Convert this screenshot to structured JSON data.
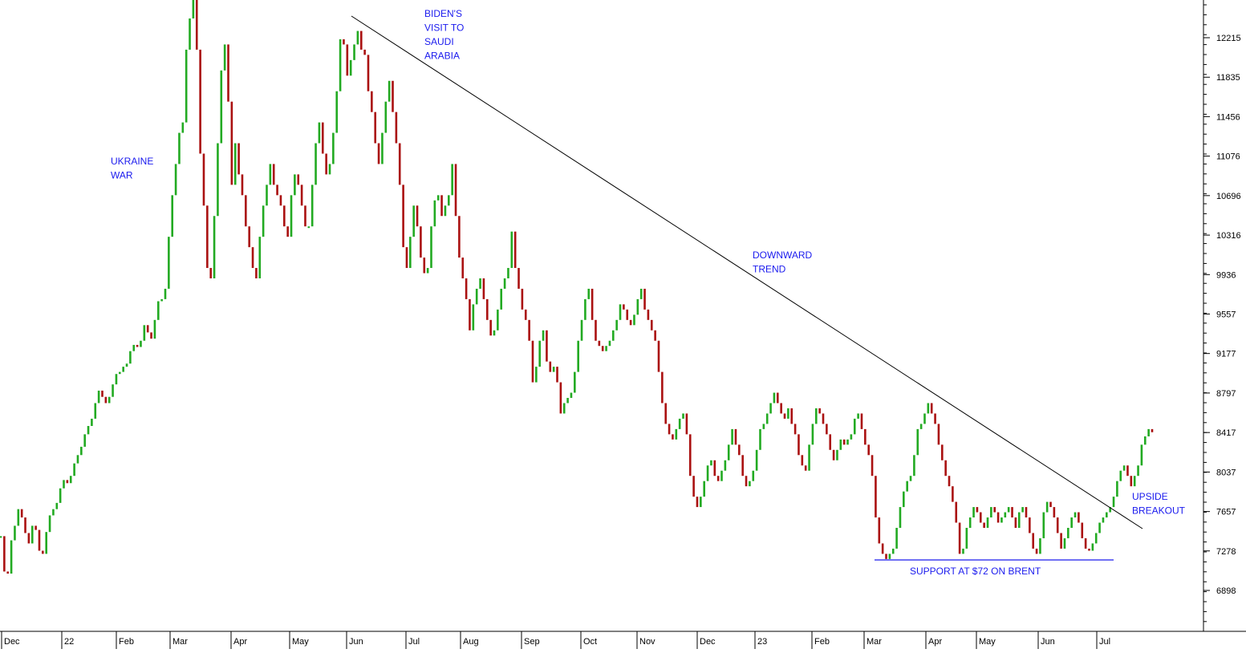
{
  "chart_data": {
    "type": "bar",
    "ylim": [
      6500,
      12600
    ],
    "y_ticks": [
      "12215",
      "11835",
      "11456",
      "11076",
      "10696",
      "10316",
      "9936",
      "9557",
      "9177",
      "8797",
      "8417",
      "8037",
      "7657",
      "7278",
      "6898"
    ],
    "x_ticks": [
      "Dec",
      "22",
      "Feb",
      "Mar",
      "Apr",
      "May",
      "Jun",
      "Jul",
      "Aug",
      "Sep",
      "Oct",
      "Nov",
      "Dec",
      "23",
      "Feb",
      "Mar",
      "Apr",
      "May",
      "Jun",
      "Jul"
    ],
    "up_color": "#22aa22",
    "down_color": "#aa1111",
    "annotation_color": "#1a1aee",
    "annotations": [
      {
        "id": "ukraine",
        "lines": [
          "UKRAINE",
          "WAR"
        ]
      },
      {
        "id": "biden",
        "lines": [
          "BIDEN'S",
          "VISIT TO",
          "SAUDI",
          "ARABIA"
        ]
      },
      {
        "id": "downward",
        "lines": [
          "DOWNWARD",
          "TREND"
        ]
      },
      {
        "id": "support",
        "lines": [
          "SUPPORT AT $72 ON BRENT"
        ]
      },
      {
        "id": "breakout",
        "lines": [
          "UPSIDE",
          "BREAKOUT"
        ]
      }
    ],
    "trendline": {
      "from": [
        "Jun",
        12400
      ],
      "to": [
        "Jul",
        7510
      ]
    },
    "support_line": {
      "value": 7220
    },
    "series": [
      {
        "values": [
          7420,
          7080,
          7060,
          7380,
          7520,
          7680,
          7600,
          7450,
          7350,
          7520,
          7480,
          7280,
          7250,
          7460,
          7620,
          7680,
          7740,
          7880,
          7960,
          7930,
          8000,
          8120,
          8200,
          8280,
          8400,
          8480,
          8550,
          8700,
          8820,
          8760,
          8700,
          8760,
          8880,
          8980,
          9000,
          9050,
          9080,
          9200,
          9260,
          9240,
          9300,
          9450,
          9380,
          9320,
          9500,
          9680,
          9700,
          9800,
          10300,
          10700,
          11000,
          11300,
          11400,
          12100,
          12400,
          12600,
          12100,
          11100,
          10600,
          10000,
          9900,
          10500,
          11200,
          11900,
          12150,
          11600,
          10800,
          11200,
          10900,
          10700,
          10400,
          10200,
          10000,
          9900,
          10300,
          10600,
          10800,
          11000,
          10800,
          10700,
          10600,
          10400,
          10300,
          10700,
          10900,
          10800,
          10600,
          10400,
          10400,
          10800,
          11200,
          11400,
          11100,
          10900,
          11000,
          11300,
          11700,
          12200,
          12150,
          11850,
          12000,
          12150,
          12280,
          12100,
          12050,
          11700,
          11500,
          11200,
          11000,
          11300,
          11600,
          11800,
          11500,
          11200,
          10800,
          10200,
          10000,
          10300,
          10600,
          10400,
          10100,
          9950,
          10000,
          10400,
          10650,
          10700,
          10500,
          10600,
          10700,
          11000,
          10500,
          10100,
          9900,
          9700,
          9400,
          9650,
          9800,
          9900,
          9700,
          9500,
          9350,
          9400,
          9600,
          9800,
          9900,
          10000,
          10350,
          10000,
          9800,
          9600,
          9500,
          9300,
          8900,
          9050,
          9300,
          9400,
          9100,
          9000,
          9050,
          8900,
          8600,
          8700,
          8750,
          8800,
          9000,
          9300,
          9500,
          9700,
          9800,
          9500,
          9300,
          9250,
          9200,
          9250,
          9300,
          9400,
          9500,
          9650,
          9600,
          9500,
          9450,
          9550,
          9700,
          9800,
          9600,
          9500,
          9400,
          9300,
          9000,
          8700,
          8500,
          8400,
          8350,
          8450,
          8550,
          8600,
          8400,
          8000,
          7800,
          7700,
          7800,
          7950,
          8100,
          8150,
          8000,
          7950,
          8050,
          8150,
          8300,
          8450,
          8300,
          8200,
          8000,
          7900,
          7950,
          8050,
          8250,
          8450,
          8500,
          8600,
          8700,
          8800,
          8700,
          8600,
          8550,
          8650,
          8500,
          8400,
          8200,
          8100,
          8050,
          8300,
          8500,
          8650,
          8600,
          8500,
          8400,
          8250,
          8150,
          8250,
          8350,
          8300,
          8350,
          8400,
          8550,
          8600,
          8450,
          8300,
          8200,
          8000,
          7600,
          7350,
          7250,
          7200,
          7250,
          7300,
          7500,
          7700,
          7850,
          7950,
          8000,
          8200,
          8450,
          8500,
          8600,
          8700,
          8600,
          8500,
          8300,
          8150,
          8000,
          7900,
          7750,
          7550,
          7250,
          7300,
          7500,
          7600,
          7700,
          7650,
          7550,
          7500,
          7600,
          7700,
          7650,
          7550,
          7600,
          7650,
          7700,
          7600,
          7500,
          7650,
          7700,
          7600,
          7450,
          7300,
          7250,
          7400,
          7650,
          7750,
          7700,
          7600,
          7450,
          7300,
          7400,
          7500,
          7600,
          7650,
          7550,
          7400,
          7300,
          7280,
          7350,
          7450,
          7550,
          7600,
          7650,
          7700,
          7800,
          7950,
          8050,
          8100,
          8000,
          7900,
          8000,
          8100,
          8300,
          8380,
          8450,
          8420
        ]
      }
    ]
  }
}
